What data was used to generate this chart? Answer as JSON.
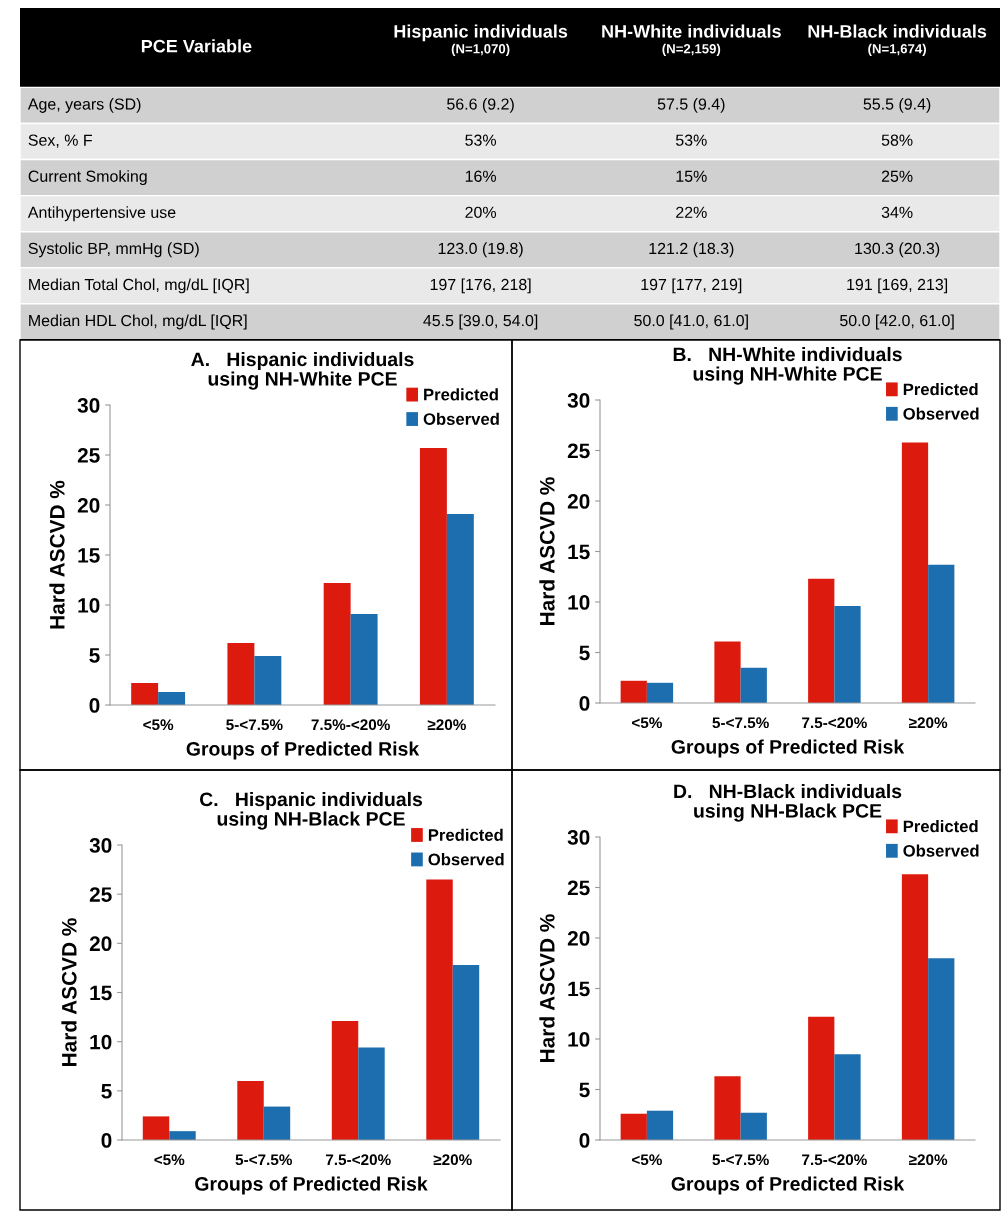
{
  "chart_data": [
    {
      "type": "other",
      "title": "PCE Variable",
      "categories": [
        "Hispanic individuals\n(N=1,070)",
        "NH-White individuals\n(N=2,159)",
        "NH-Black individuals\n(N=1,674)"
      ],
      "y_categories": [
        "Age, years (SD)",
        "Sex, % F",
        "Current Smoking",
        "Antihypertensive use",
        "Systolic BP, mmHg (SD)",
        "Median Total Chol, mg/dL [IQR]",
        "Median HDL Chol, mg/dL [IQR]"
      ],
      "cell_labels": [
        [
          "56.6 (9.2)",
          "57.5 (9.4)",
          "55.5 (9.4)"
        ],
        [
          "53%",
          "53%",
          "58%"
        ],
        [
          "16%",
          "15%",
          "25%"
        ],
        [
          "20%",
          "22%",
          "34%"
        ],
        [
          "123.0 (19.8)",
          "121.2 (18.3)",
          "130.3 (20.3)"
        ],
        [
          "197 [176, 218]",
          "197 [177, 219]",
          "191 [169, 213]"
        ],
        [
          "45.5 [39.0, 54.0]",
          "50.0 [41.0, 61.0]",
          "50.0 [42.0, 61.0]"
        ]
      ]
    },
    {
      "type": "bar",
      "title": "A.   Hispanic individuals\nusing NH-White PCE",
      "xlabel": "Groups of Predicted Risk",
      "ylabel": "Hard ASCVD %",
      "categories": [
        "<5%",
        "5-<7.5%",
        "7.5%-<20%",
        "≥20%"
      ],
      "ylim": [
        0,
        30
      ],
      "yticks": [
        0,
        5,
        10,
        15,
        20,
        25,
        30
      ],
      "legend": "top right",
      "grid": false,
      "series": [
        {
          "name": "Predicted",
          "color": "#dd1a0e",
          "values": [
            2.2,
            6.2,
            12.2,
            25.7
          ]
        },
        {
          "name": "Observed",
          "color": "#1c6eae",
          "values": [
            1.3,
            4.9,
            9.1,
            19.1
          ]
        }
      ]
    },
    {
      "type": "bar",
      "title": "B.   NH-White individuals\nusing NH-White PCE",
      "xlabel": "Groups of Predicted Risk",
      "ylabel": "Hard ASCVD %",
      "categories": [
        "<5%",
        "5-<7.5%",
        "7.5-<20%",
        "≥20%"
      ],
      "ylim": [
        0,
        30
      ],
      "yticks": [
        0,
        5,
        10,
        15,
        20,
        25,
        30
      ],
      "legend": "top right",
      "grid": false,
      "series": [
        {
          "name": "Predicted",
          "color": "#dd1a0e",
          "values": [
            2.2,
            6.1,
            12.3,
            25.8
          ]
        },
        {
          "name": "Observed",
          "color": "#1c6eae",
          "values": [
            2.0,
            3.5,
            9.6,
            13.7
          ]
        }
      ]
    },
    {
      "type": "bar",
      "title": "C.   Hispanic individuals\nusing NH-Black PCE",
      "xlabel": "Groups of Predicted Risk",
      "ylabel": "Hard ASCVD %",
      "categories": [
        "<5%",
        "5-<7.5%",
        "7.5-<20%",
        "≥20%"
      ],
      "ylim": [
        0,
        30
      ],
      "yticks": [
        0,
        5,
        10,
        15,
        20,
        25,
        30
      ],
      "legend": "top right",
      "grid": false,
      "series": [
        {
          "name": "Predicted",
          "color": "#dd1a0e",
          "values": [
            2.4,
            6.0,
            12.1,
            26.5
          ]
        },
        {
          "name": "Observed",
          "color": "#1c6eae",
          "values": [
            0.9,
            3.4,
            9.4,
            17.8
          ]
        }
      ]
    },
    {
      "type": "bar",
      "title": "D.   NH-Black individuals\nusing NH-Black PCE",
      "xlabel": "Groups of Predicted Risk",
      "ylabel": "Hard ASCVD %",
      "categories": [
        "<5%",
        "5-<7.5%",
        "7.5-<20%",
        "≥20%"
      ],
      "ylim": [
        0,
        30
      ],
      "yticks": [
        0,
        5,
        10,
        15,
        20,
        25,
        30
      ],
      "legend": "top right",
      "grid": false,
      "series": [
        {
          "name": "Predicted",
          "color": "#dd1a0e",
          "values": [
            2.6,
            6.3,
            12.2,
            26.3
          ]
        },
        {
          "name": "Observed",
          "color": "#1c6eae",
          "values": [
            2.9,
            2.7,
            8.5,
            18.0
          ]
        }
      ]
    }
  ]
}
